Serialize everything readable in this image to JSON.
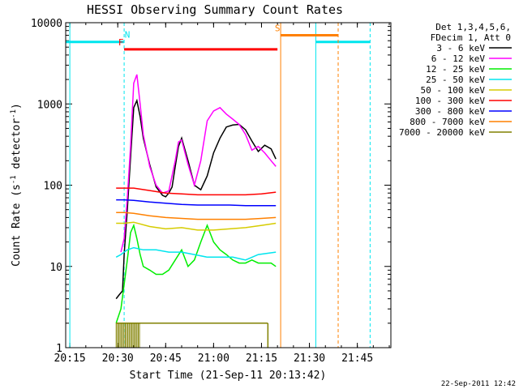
{
  "chart_data": {
    "type": "line",
    "title": "HESSI Observing Summary Count Rates",
    "xlabel": "Start Time (21-Sep-11 20:13:42)",
    "ylabel": "Count Rate (s⁻¹ detector⁻¹)",
    "ylabel_main": "Count Rate (s",
    "ylabel_sup1": "-1",
    "ylabel_mid": " detector",
    "ylabel_sup2": "-1",
    "ylabel_end": ")",
    "y_scale": "log",
    "xlim": [
      "20:13:42",
      "21:55:30"
    ],
    "ylim": [
      1,
      10000
    ],
    "x_ticks": [
      "20:15",
      "20:30",
      "20:45",
      "21:00",
      "21:15",
      "21:30",
      "21:45"
    ],
    "y_ticks": [
      "1",
      "10",
      "100",
      "1000",
      "10000"
    ],
    "date_stamp": "22-Sep-2011 12:42",
    "legend": {
      "position": "right",
      "header": [
        "Det 1,3,4,5,6,",
        "FDecim 1, Att 0"
      ],
      "entries": [
        {
          "label": "3 - 6 keV",
          "color": "#000000"
        },
        {
          "label": "6 - 12 keV",
          "color": "#ff00ff"
        },
        {
          "label": "12 - 25 keV",
          "color": "#00ee00"
        },
        {
          "label": "25 - 50 keV",
          "color": "#00e5ee"
        },
        {
          "label": "50 - 100 keV",
          "color": "#d6cc00"
        },
        {
          "label": "100 - 300 keV",
          "color": "#ff0000"
        },
        {
          "label": "300 - 800 keV",
          "color": "#0000ff"
        },
        {
          "label": "800 - 7000 keV",
          "color": "#ff8000"
        },
        {
          "label": "7000 - 20000 keV",
          "color": "#808000"
        }
      ]
    },
    "flags": [
      {
        "label": "",
        "color": "#00e5ee",
        "y": 5800,
        "segments": [
          [
            "20:13:42",
            "20:32:00"
          ],
          [
            "21:32:00",
            "21:49:00"
          ]
        ],
        "boundaries": [
          "20:15:00",
          "20:32:00",
          "21:32:00",
          "21:49:00"
        ]
      },
      {
        "label": "N",
        "color": "#00e5ee",
        "y": 5800,
        "label_at": "20:33:00"
      },
      {
        "label": "F",
        "color": "#ff0000",
        "y": 4700,
        "segments": [
          [
            "20:32:00",
            "21:20:00"
          ]
        ],
        "label_at": "20:31:00"
      },
      {
        "label": "S",
        "color": "#ff8000",
        "y": 7000,
        "segments": [
          [
            "21:21:00",
            "21:39:00"
          ]
        ],
        "boundaries": [
          "21:21:00",
          "21:39:00"
        ],
        "label_at": "21:20:00"
      }
    ],
    "series": [
      {
        "name": "3 - 6 keV",
        "color": "#000000",
        "x": [
          "20:29:30",
          "20:30:30",
          "20:31:30",
          "20:32:00",
          "20:33:00",
          "20:34:00",
          "20:35:00",
          "20:36:00",
          "20:37:00",
          "20:38:00",
          "20:40:00",
          "20:42:00",
          "20:44:00",
          "20:45:00",
          "20:46:00",
          "20:47:00",
          "20:48:00",
          "20:49:00",
          "20:50:00",
          "20:52:00",
          "20:54:00",
          "20:56:00",
          "20:58:00",
          "21:00:00",
          "21:02:00",
          "21:04:00",
          "21:06:00",
          "21:08:00",
          "21:10:00",
          "21:12:00",
          "21:14:00",
          "21:16:00",
          "21:18:00",
          "21:19:30"
        ],
        "values": [
          4,
          4.5,
          5,
          14,
          50,
          220,
          900,
          1100,
          700,
          380,
          180,
          95,
          75,
          72,
          80,
          95,
          170,
          300,
          380,
          200,
          100,
          88,
          130,
          250,
          380,
          520,
          550,
          560,
          480,
          350,
          260,
          310,
          280,
          210
        ]
      },
      {
        "name": "6 - 12 keV",
        "color": "#ff00ff",
        "x": [
          "20:31:00",
          "20:32:00",
          "20:33:00",
          "20:34:00",
          "20:35:00",
          "20:36:00",
          "20:37:00",
          "20:38:00",
          "20:40:00",
          "20:42:00",
          "20:44:00",
          "20:46:00",
          "20:48:00",
          "20:49:00",
          "20:50:00",
          "20:52:00",
          "20:54:00",
          "20:56:00",
          "20:58:00",
          "21:00:00",
          "21:02:00",
          "21:04:00",
          "21:06:00",
          "21:08:00",
          "21:10:00",
          "21:12:00",
          "21:14:00",
          "21:16:00",
          "21:18:00",
          "21:19:30"
        ],
        "values": [
          15,
          22,
          70,
          300,
          1800,
          2300,
          1000,
          420,
          170,
          100,
          80,
          85,
          200,
          340,
          360,
          180,
          100,
          200,
          620,
          820,
          900,
          750,
          650,
          560,
          420,
          270,
          300,
          250,
          200,
          170
        ]
      },
      {
        "name": "12 - 25 keV",
        "color": "#00ee00",
        "x": [
          "20:29:30",
          "20:31:00",
          "20:32:00",
          "20:33:00",
          "20:34:00",
          "20:35:00",
          "20:36:00",
          "20:37:00",
          "20:38:00",
          "20:40:00",
          "20:42:00",
          "20:44:00",
          "20:46:00",
          "20:48:00",
          "20:50:00",
          "20:52:00",
          "20:54:00",
          "20:56:00",
          "20:58:00",
          "21:00:00",
          "21:02:00",
          "21:04:00",
          "21:06:00",
          "21:08:00",
          "21:10:00",
          "21:12:00",
          "21:14:00",
          "21:16:00",
          "21:18:00",
          "21:19:30"
        ],
        "values": [
          2,
          3,
          6,
          12,
          26,
          32,
          22,
          14,
          10,
          9,
          8,
          8,
          9,
          12,
          16,
          10,
          12,
          20,
          32,
          20,
          16,
          14,
          12,
          11,
          11,
          12,
          11,
          11,
          11,
          10
        ]
      },
      {
        "name": "25 - 50 keV",
        "color": "#00e5ee",
        "x": [
          "20:29:30",
          "20:31:00",
          "20:32:00",
          "20:33:00",
          "20:35:00",
          "20:38:00",
          "20:42:00",
          "20:46:00",
          "20:50:00",
          "20:54:00",
          "20:58:00",
          "21:02:00",
          "21:06:00",
          "21:10:00",
          "21:14:00",
          "21:19:30"
        ],
        "values": [
          13,
          14,
          15,
          16,
          17,
          16,
          16,
          15,
          15,
          14,
          13,
          13,
          13,
          12,
          14,
          15
        ]
      },
      {
        "name": "50 - 100 keV",
        "color": "#d6cc00",
        "x": [
          "20:29:30",
          "20:32:00",
          "20:35:00",
          "20:40:00",
          "20:45:00",
          "20:50:00",
          "20:55:00",
          "21:00:00",
          "21:05:00",
          "21:10:00",
          "21:15:00",
          "21:19:30"
        ],
        "values": [
          34,
          34,
          35,
          31,
          29,
          30,
          28,
          28,
          29,
          30,
          32,
          34
        ]
      },
      {
        "name": "100 - 300 keV",
        "color": "#ff0000",
        "x": [
          "20:29:30",
          "20:32:00",
          "20:35:00",
          "20:40:00",
          "20:45:00",
          "20:50:00",
          "20:55:00",
          "21:00:00",
          "21:05:00",
          "21:10:00",
          "21:15:00",
          "21:19:30"
        ],
        "values": [
          92,
          92,
          92,
          86,
          80,
          78,
          76,
          76,
          76,
          76,
          78,
          82
        ]
      },
      {
        "name": "300 - 800 keV",
        "color": "#0000ff",
        "x": [
          "20:29:30",
          "20:32:00",
          "20:35:00",
          "20:40:00",
          "20:45:00",
          "20:50:00",
          "20:55:00",
          "21:00:00",
          "21:05:00",
          "21:10:00",
          "21:15:00",
          "21:19:30"
        ],
        "values": [
          66,
          66,
          65,
          62,
          60,
          58,
          57,
          57,
          57,
          56,
          56,
          56
        ]
      },
      {
        "name": "800 - 7000 keV",
        "color": "#ff8000",
        "x": [
          "20:29:30",
          "20:32:00",
          "20:35:00",
          "20:40:00",
          "20:45:00",
          "20:50:00",
          "20:55:00",
          "21:00:00",
          "21:05:00",
          "21:10:00",
          "21:15:00",
          "21:19:30"
        ],
        "values": [
          46,
          46,
          45,
          42,
          40,
          39,
          38,
          38,
          38,
          38,
          39,
          40
        ]
      },
      {
        "name": "7000 - 20000 keV",
        "color": "#808000",
        "x": [
          "20:29:30",
          "20:30:30",
          "20:31:30",
          "20:32:30",
          "20:33:30",
          "20:34:30",
          "20:35:30",
          "20:36:30",
          "20:37:00",
          "21:17:00"
        ],
        "values": [
          2,
          2,
          2,
          2,
          2,
          2,
          2,
          2,
          2,
          2
        ]
      }
    ]
  }
}
